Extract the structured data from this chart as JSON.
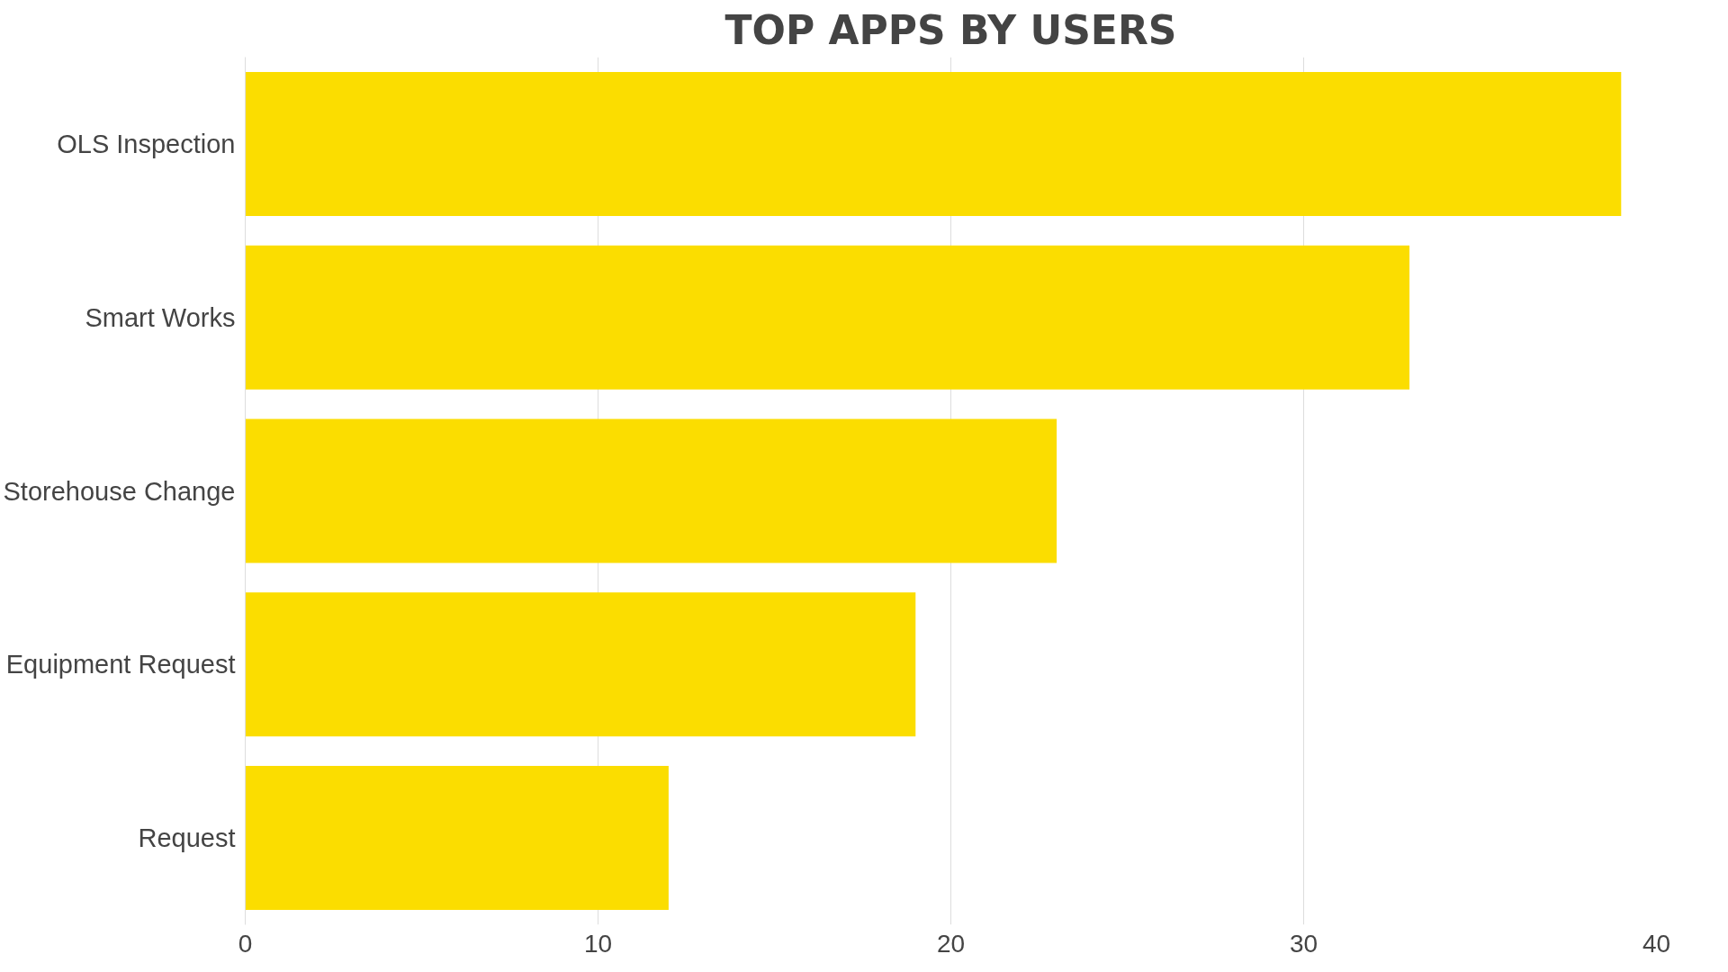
{
  "chart_data": {
    "type": "bar",
    "orientation": "horizontal",
    "title": "TOP APPS BY USERS",
    "categories": [
      "OLS Inspection",
      "Smart Works",
      "Storehouse Change",
      "Equipment Request",
      "Request"
    ],
    "values": [
      39,
      33,
      23,
      19,
      12
    ],
    "color": "#fbdd00",
    "xlim": [
      0,
      40
    ],
    "xticks": [
      0,
      10,
      20,
      30,
      40
    ],
    "grid": "x"
  }
}
